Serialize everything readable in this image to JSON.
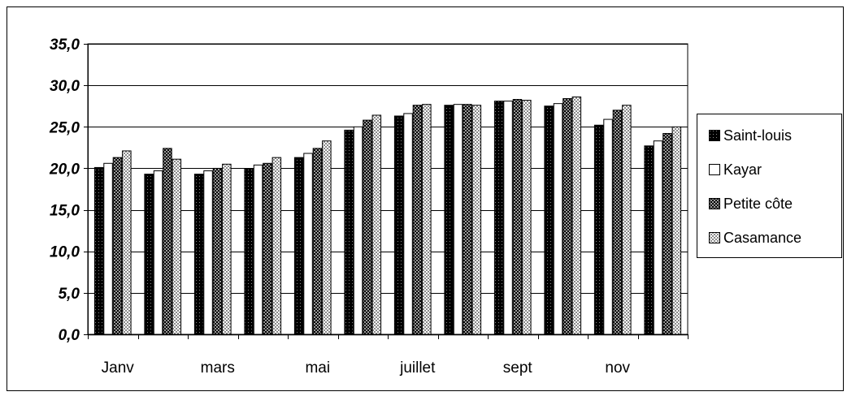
{
  "chart_data": {
    "type": "bar",
    "categories": [
      "Janv",
      "",
      "mars",
      "",
      "mai",
      "",
      "juillet",
      "",
      "sept",
      "",
      "nov",
      ""
    ],
    "x_tick_labels": [
      "Janv",
      "mars",
      "mai",
      "juillet",
      "sept",
      "nov"
    ],
    "y_tick_labels": [
      "0,0",
      "5,0",
      "10,0",
      "15,0",
      "20,0",
      "25,0",
      "30,0",
      "35,0"
    ],
    "ylim": [
      0,
      35
    ],
    "y_step": 5,
    "grid": true,
    "legend_position": "right",
    "title": "",
    "xlabel": "",
    "ylabel": "",
    "series": [
      {
        "name": "Saint-louis",
        "pattern": "dark",
        "values": [
          20.1,
          19.3,
          19.3,
          19.9,
          21.3,
          24.6,
          26.3,
          27.6,
          28.1,
          27.5,
          25.2,
          22.7
        ]
      },
      {
        "name": "Kayar",
        "pattern": "white",
        "values": [
          20.6,
          19.7,
          19.7,
          20.4,
          21.8,
          25.0,
          26.6,
          27.7,
          28.1,
          27.8,
          25.9,
          23.3
        ]
      },
      {
        "name": "Petite côte",
        "pattern": "checker",
        "values": [
          21.3,
          22.4,
          20.0,
          20.6,
          22.4,
          25.8,
          27.6,
          27.7,
          28.3,
          28.4,
          27.0,
          24.2
        ]
      },
      {
        "name": "Casamance",
        "pattern": "dotted",
        "values": [
          22.1,
          21.1,
          20.5,
          21.3,
          23.3,
          26.4,
          27.7,
          27.6,
          28.2,
          28.6,
          27.6,
          25.0
        ]
      }
    ]
  }
}
